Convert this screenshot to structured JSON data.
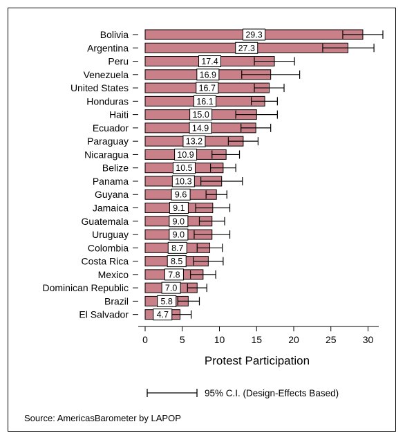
{
  "chart_data": {
    "type": "bar",
    "orientation": "horizontal",
    "xlabel": "Protest Participation",
    "xlim": [
      0,
      32.5
    ],
    "xticks": [
      0,
      5,
      10,
      15,
      20,
      25,
      30
    ],
    "grid": false,
    "bar_color": "#c98088",
    "bar_edge_color": "#000000",
    "categories": [
      "Bolivia",
      "Argentina",
      "Peru",
      "Venezuela",
      "United States",
      "Honduras",
      "Haiti",
      "Ecuador",
      "Paraguay",
      "Nicaragua",
      "Belize",
      "Panama",
      "Guyana",
      "Jamaica",
      "Guatemala",
      "Uruguay",
      "Colombia",
      "Costa Rica",
      "Mexico",
      "Dominican Republic",
      "Brazil",
      "El Salvador"
    ],
    "values": [
      29.3,
      27.3,
      17.4,
      16.9,
      16.7,
      16.1,
      15.0,
      14.9,
      13.2,
      10.9,
      10.5,
      10.3,
      9.6,
      9.1,
      9.0,
      9.0,
      8.7,
      8.5,
      7.8,
      7.0,
      5.8,
      4.7
    ],
    "value_labels": [
      "29.3",
      "27.3",
      "17.4",
      "16.9",
      "16.7",
      "16.1",
      "15.0",
      "14.9",
      "13.2",
      "10.9",
      "10.5",
      "10.3",
      "9.6",
      "9.1",
      "9.0",
      "9.0",
      "8.7",
      "8.5",
      "7.8",
      "7.0",
      "5.8",
      "4.7"
    ],
    "ci_low": [
      26.6,
      23.9,
      14.7,
      13.0,
      14.7,
      14.3,
      12.2,
      12.9,
      11.2,
      9.0,
      8.8,
      7.5,
      8.2,
      6.8,
      7.3,
      6.6,
      7.0,
      6.5,
      6.1,
      5.7,
      4.4,
      3.2
    ],
    "ci_high": [
      32.0,
      30.8,
      20.1,
      20.8,
      18.7,
      17.8,
      17.8,
      16.9,
      15.2,
      12.7,
      12.2,
      13.1,
      11.0,
      11.4,
      10.7,
      11.4,
      10.4,
      10.5,
      9.5,
      8.3,
      7.3,
      6.2
    ],
    "legend": {
      "position": "bottom",
      "label": "95% C.I. (Design-Effects Based)"
    },
    "source": "Source: AmericasBarometer by  LAPOP"
  }
}
